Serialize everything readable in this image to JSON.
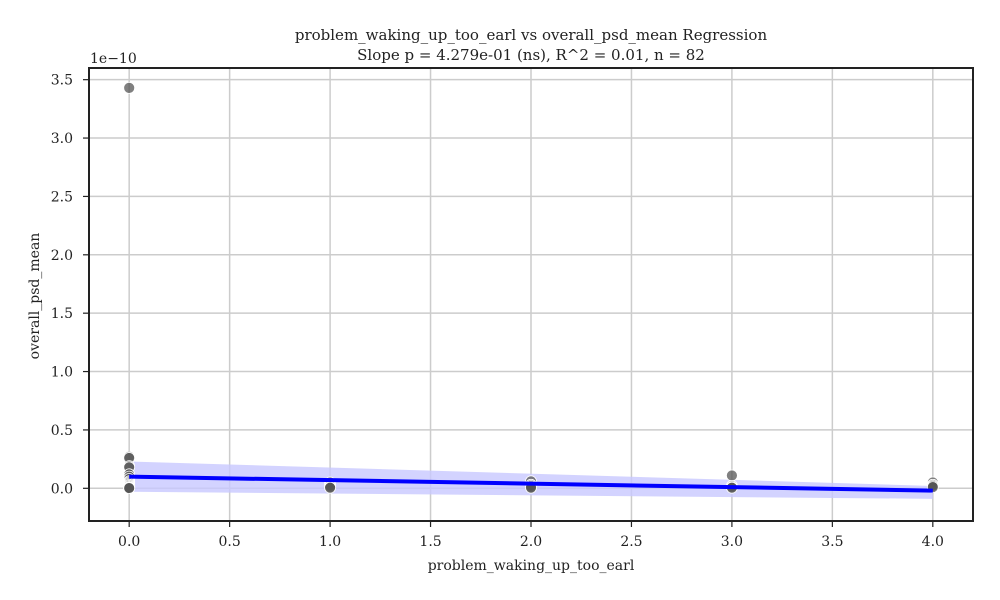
{
  "chart_data": {
    "type": "scatter",
    "title": "problem_waking_up_too_earl vs overall_psd_mean Regression",
    "subtitle": "Slope p = 4.279e-01 (ns), R^2 = 0.01, n = 82",
    "xlabel": "problem_waking_up_too_earl",
    "ylabel": "overall_psd_mean",
    "y_scale_label": "1e−10",
    "xlim": [
      -0.2,
      4.2
    ],
    "ylim": [
      -0.28,
      3.6
    ],
    "x_ticks": [
      0.0,
      0.5,
      1.0,
      1.5,
      2.0,
      2.5,
      3.0,
      3.5,
      4.0
    ],
    "x_tick_labels": [
      "0.0",
      "0.5",
      "1.0",
      "1.5",
      "2.0",
      "2.5",
      "3.0",
      "3.5",
      "4.0"
    ],
    "y_ticks": [
      0.0,
      0.5,
      1.0,
      1.5,
      2.0,
      2.5,
      3.0,
      3.5
    ],
    "y_tick_labels": [
      "0.0",
      "0.5",
      "1.0",
      "1.5",
      "2.0",
      "2.5",
      "3.0",
      "3.5"
    ],
    "grid": true,
    "points": [
      {
        "x": 0,
        "y": 3.43
      },
      {
        "x": 0,
        "y": 0.27
      },
      {
        "x": 0,
        "y": 0.26
      },
      {
        "x": 0,
        "y": 0.19
      },
      {
        "x": 0,
        "y": 0.18
      },
      {
        "x": 0,
        "y": 0.12
      },
      {
        "x": 0,
        "y": 0.1
      },
      {
        "x": 0,
        "y": 0.08
      },
      {
        "x": 0,
        "y": 0.06
      },
      {
        "x": 0,
        "y": 0.05
      },
      {
        "x": 0,
        "y": 0.04
      },
      {
        "x": 0,
        "y": 0.03
      },
      {
        "x": 0,
        "y": 0.02
      },
      {
        "x": 0,
        "y": 0.02
      },
      {
        "x": 0,
        "y": 0.01
      },
      {
        "x": 0,
        "y": 0.01
      },
      {
        "x": 0,
        "y": 0.01
      },
      {
        "x": 0,
        "y": 0.005
      },
      {
        "x": 0,
        "y": 0.005
      },
      {
        "x": 0,
        "y": 0.003
      },
      {
        "x": 0,
        "y": 0.002
      },
      {
        "x": 1,
        "y": 0.05
      },
      {
        "x": 1,
        "y": 0.03
      },
      {
        "x": 1,
        "y": 0.02
      },
      {
        "x": 1,
        "y": 0.01
      },
      {
        "x": 1,
        "y": 0.005
      },
      {
        "x": 2,
        "y": 0.06
      },
      {
        "x": 2,
        "y": 0.03
      },
      {
        "x": 2,
        "y": 0.02
      },
      {
        "x": 2,
        "y": 0.01
      },
      {
        "x": 2,
        "y": 0.005
      },
      {
        "x": 3,
        "y": 0.11
      },
      {
        "x": 3,
        "y": 0.02
      },
      {
        "x": 3,
        "y": 0.01
      },
      {
        "x": 3,
        "y": 0.005
      },
      {
        "x": 4,
        "y": 0.05
      },
      {
        "x": 4,
        "y": 0.03
      },
      {
        "x": 4,
        "y": 0.02
      },
      {
        "x": 4,
        "y": 0.01
      }
    ],
    "point_color": "#555555",
    "regression": {
      "x": [
        0,
        4
      ],
      "y": [
        0.1,
        -0.02
      ],
      "ci_upper": [
        0.23,
        0.02
      ],
      "ci_lower": [
        -0.03,
        -0.09
      ],
      "line_color": "#0000ff",
      "band_color": "#c8c8ff"
    }
  }
}
